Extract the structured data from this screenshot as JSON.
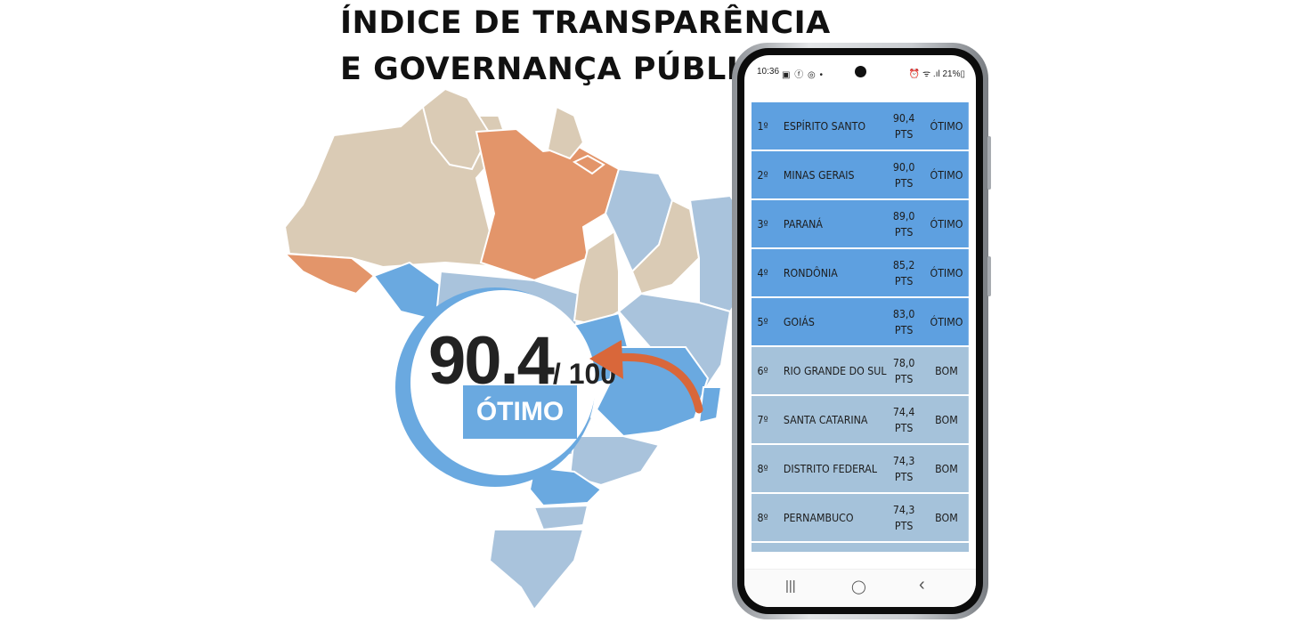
{
  "headline": {
    "line1": "ÍNDICE DE TRANSPARÊNCIA",
    "line2": "E GOVERNANÇA PÚBLICA"
  },
  "score": {
    "value": "90.4",
    "max": "/ 100",
    "rating": "ÓTIMO"
  },
  "colors": {
    "beige": "#dacbb5",
    "orange": "#e3956a",
    "light_blue": "#a9c3dc",
    "mid_blue": "#6aa9e0",
    "arrow": "#d9673a"
  },
  "phone": {
    "status": {
      "time": "10:36",
      "notification_icons": "▣ ⓕ ◎ •",
      "right": "⏰ ᯤ .ıl 21%▯"
    },
    "ranking": [
      {
        "rank": "1º",
        "state": "ESPÍRITO SANTO",
        "pts": "90,4",
        "unit": "PTS",
        "class": "ÓTIMO",
        "tier": "top"
      },
      {
        "rank": "2º",
        "state": "MINAS GERAIS",
        "pts": "90,0",
        "unit": "PTS",
        "class": "ÓTIMO",
        "tier": "top"
      },
      {
        "rank": "3º",
        "state": "PARANÁ",
        "pts": "89,0",
        "unit": "PTS",
        "class": "ÓTIMO",
        "tier": "top"
      },
      {
        "rank": "4º",
        "state": "RONDÔNIA",
        "pts": "85,2",
        "unit": "PTS",
        "class": "ÓTIMO",
        "tier": "top"
      },
      {
        "rank": "5º",
        "state": "GOIÁS",
        "pts": "83,0",
        "unit": "PTS",
        "class": "ÓTIMO",
        "tier": "top"
      },
      {
        "rank": "6º",
        "state": "RIO GRANDE DO SUL",
        "pts": "78,0",
        "unit": "PTS",
        "class": "BOM",
        "tier": "mid"
      },
      {
        "rank": "7º",
        "state": "SANTA CATARINA",
        "pts": "74,4",
        "unit": "PTS",
        "class": "BOM",
        "tier": "mid"
      },
      {
        "rank": "8º",
        "state": "DISTRITO FEDERAL",
        "pts": "74,3",
        "unit": "PTS",
        "class": "BOM",
        "tier": "mid"
      },
      {
        "rank": "8º",
        "state": "PERNAMBUCO",
        "pts": "74,3",
        "unit": "PTS",
        "class": "BOM",
        "tier": "mid"
      }
    ],
    "nav": {
      "recent": "|||",
      "home": "◯",
      "back": "‹"
    }
  }
}
